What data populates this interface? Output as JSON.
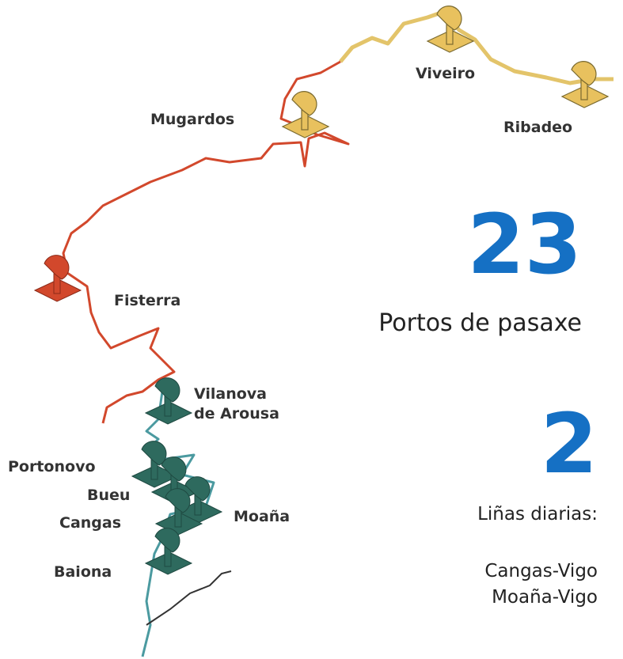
{
  "ports": [
    {
      "label": "Mugardos"
    },
    {
      "label": "Viveiro"
    },
    {
      "label": "Ribadeo"
    },
    {
      "label": "Fisterra"
    },
    {
      "label": [
        "Vilanova",
        "de Arousa"
      ]
    },
    {
      "label": "Portonovo"
    },
    {
      "label": "Bueu"
    },
    {
      "label": "Cangas"
    },
    {
      "label": "Moaña"
    },
    {
      "label": "Baiona"
    }
  ],
  "stats": [
    {
      "number": "23",
      "text": [
        "Portos de pasaxe"
      ]
    },
    {
      "number": "2",
      "text": [
        "Liñas diarias:",
        "Cangas-Vigo",
        "Moaña-Vigo"
      ]
    }
  ]
}
